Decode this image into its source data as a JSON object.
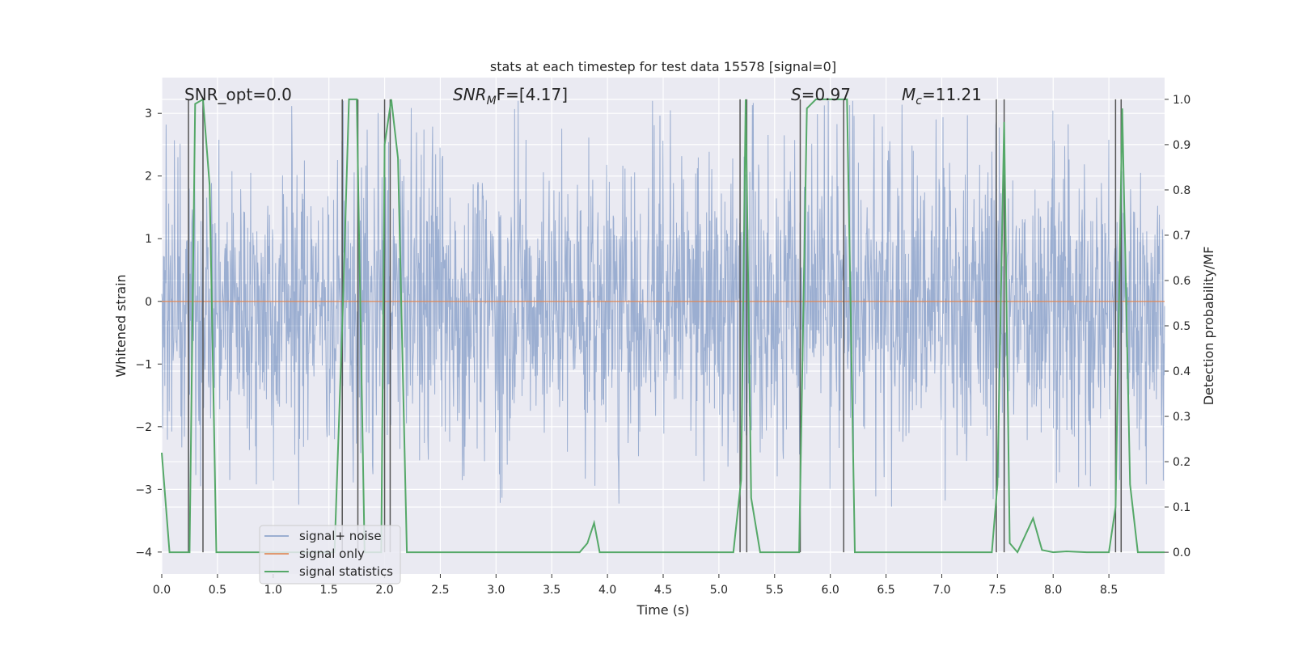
{
  "chart_data": {
    "type": "line",
    "title": "stats at each timestep for test data 15578 [signal=0]",
    "xlabel": "Time (s)",
    "ylabel_left": "Whitened strain",
    "ylabel_right": "Detection probability/MF",
    "xlim": [
      0.0,
      9.0
    ],
    "ylim_left": [
      -4.35,
      3.57
    ],
    "ylim_right": [
      -0.048,
      1.048
    ],
    "x_ticks": [
      "0.0",
      "0.5",
      "1.0",
      "1.5",
      "2.0",
      "2.5",
      "3.0",
      "3.5",
      "4.0",
      "4.5",
      "5.0",
      "5.5",
      "6.0",
      "6.5",
      "7.0",
      "7.5",
      "8.0",
      "8.5"
    ],
    "y_ticks_left": [
      "3",
      "2",
      "1",
      "0",
      "−1",
      "−2",
      "−3",
      "−4"
    ],
    "y_ticks_right": [
      "1.0",
      "0.9",
      "0.8",
      "0.7",
      "0.6",
      "0.5",
      "0.4",
      "0.3",
      "0.2",
      "0.1",
      "0.0"
    ],
    "grid": true,
    "legend_position": "lower-left",
    "annotations": {
      "snr_opt": "SNR_opt=0.0",
      "snr_mf_base": "SNR",
      "snr_mf_sub": "M",
      "snr_mf_rest": "F=[4.17]",
      "s_italic": "S",
      "s_rest": "=0.97",
      "mc_base": "M",
      "mc_sub": "c",
      "mc_rest": "=11.21"
    },
    "series": [
      {
        "name": "signal+ noise",
        "color": "#4c72b0",
        "description_values": "whitened strain noise, approx. ±1.75 dense band with spikes to +3.2 / -3.4"
      },
      {
        "name": "signal only",
        "color": "#dd8452",
        "y_constant": 0.0
      },
      {
        "name": "signal statistics",
        "color": "#55a868",
        "axis": "right",
        "x": [
          0.0,
          0.07,
          0.25,
          0.3,
          0.37,
          0.43,
          0.49,
          0.55,
          0.65,
          0.8,
          1.0,
          1.2,
          1.4,
          1.55,
          1.62,
          1.68,
          1.75,
          1.82,
          1.9,
          1.97,
          2.0,
          2.06,
          2.12,
          2.2,
          2.5,
          3.0,
          3.5,
          3.75,
          3.82,
          3.88,
          3.93,
          4.5,
          5.13,
          5.2,
          5.24,
          5.29,
          5.37,
          5.5,
          5.72,
          5.79,
          5.87,
          6.0,
          6.15,
          6.22,
          6.5,
          7.0,
          7.45,
          7.5,
          7.56,
          7.61,
          7.68,
          7.82,
          7.9,
          8.0,
          8.12,
          8.3,
          8.5,
          8.56,
          8.62,
          8.69,
          8.76,
          9.0
        ],
        "y": [
          0.22,
          0.0,
          0.0,
          0.99,
          1.0,
          0.81,
          0.0,
          0.0,
          0.0,
          0.0,
          0.0,
          0.0,
          0.0,
          0.0,
          0.5,
          1.0,
          1.0,
          0.0,
          0.0,
          0.0,
          0.9,
          1.0,
          0.87,
          0.0,
          0.0,
          0.0,
          0.0,
          0.0,
          0.02,
          0.065,
          0.0,
          0.0,
          0.0,
          0.16,
          1.0,
          0.12,
          0.0,
          0.0,
          0.0,
          0.98,
          1.0,
          1.0,
          1.0,
          0.0,
          0.0,
          0.0,
          0.0,
          0.15,
          0.95,
          0.02,
          0.0,
          0.075,
          0.005,
          0.0,
          0.002,
          0.0,
          0.0,
          0.1,
          0.98,
          0.15,
          0.0,
          0.0
        ]
      }
    ],
    "event_markers_x": [
      0.24,
      0.37,
      1.62,
      1.76,
      2.0,
      2.05,
      5.19,
      5.25,
      5.73,
      6.12,
      7.49,
      7.56,
      8.56,
      8.61
    ]
  }
}
